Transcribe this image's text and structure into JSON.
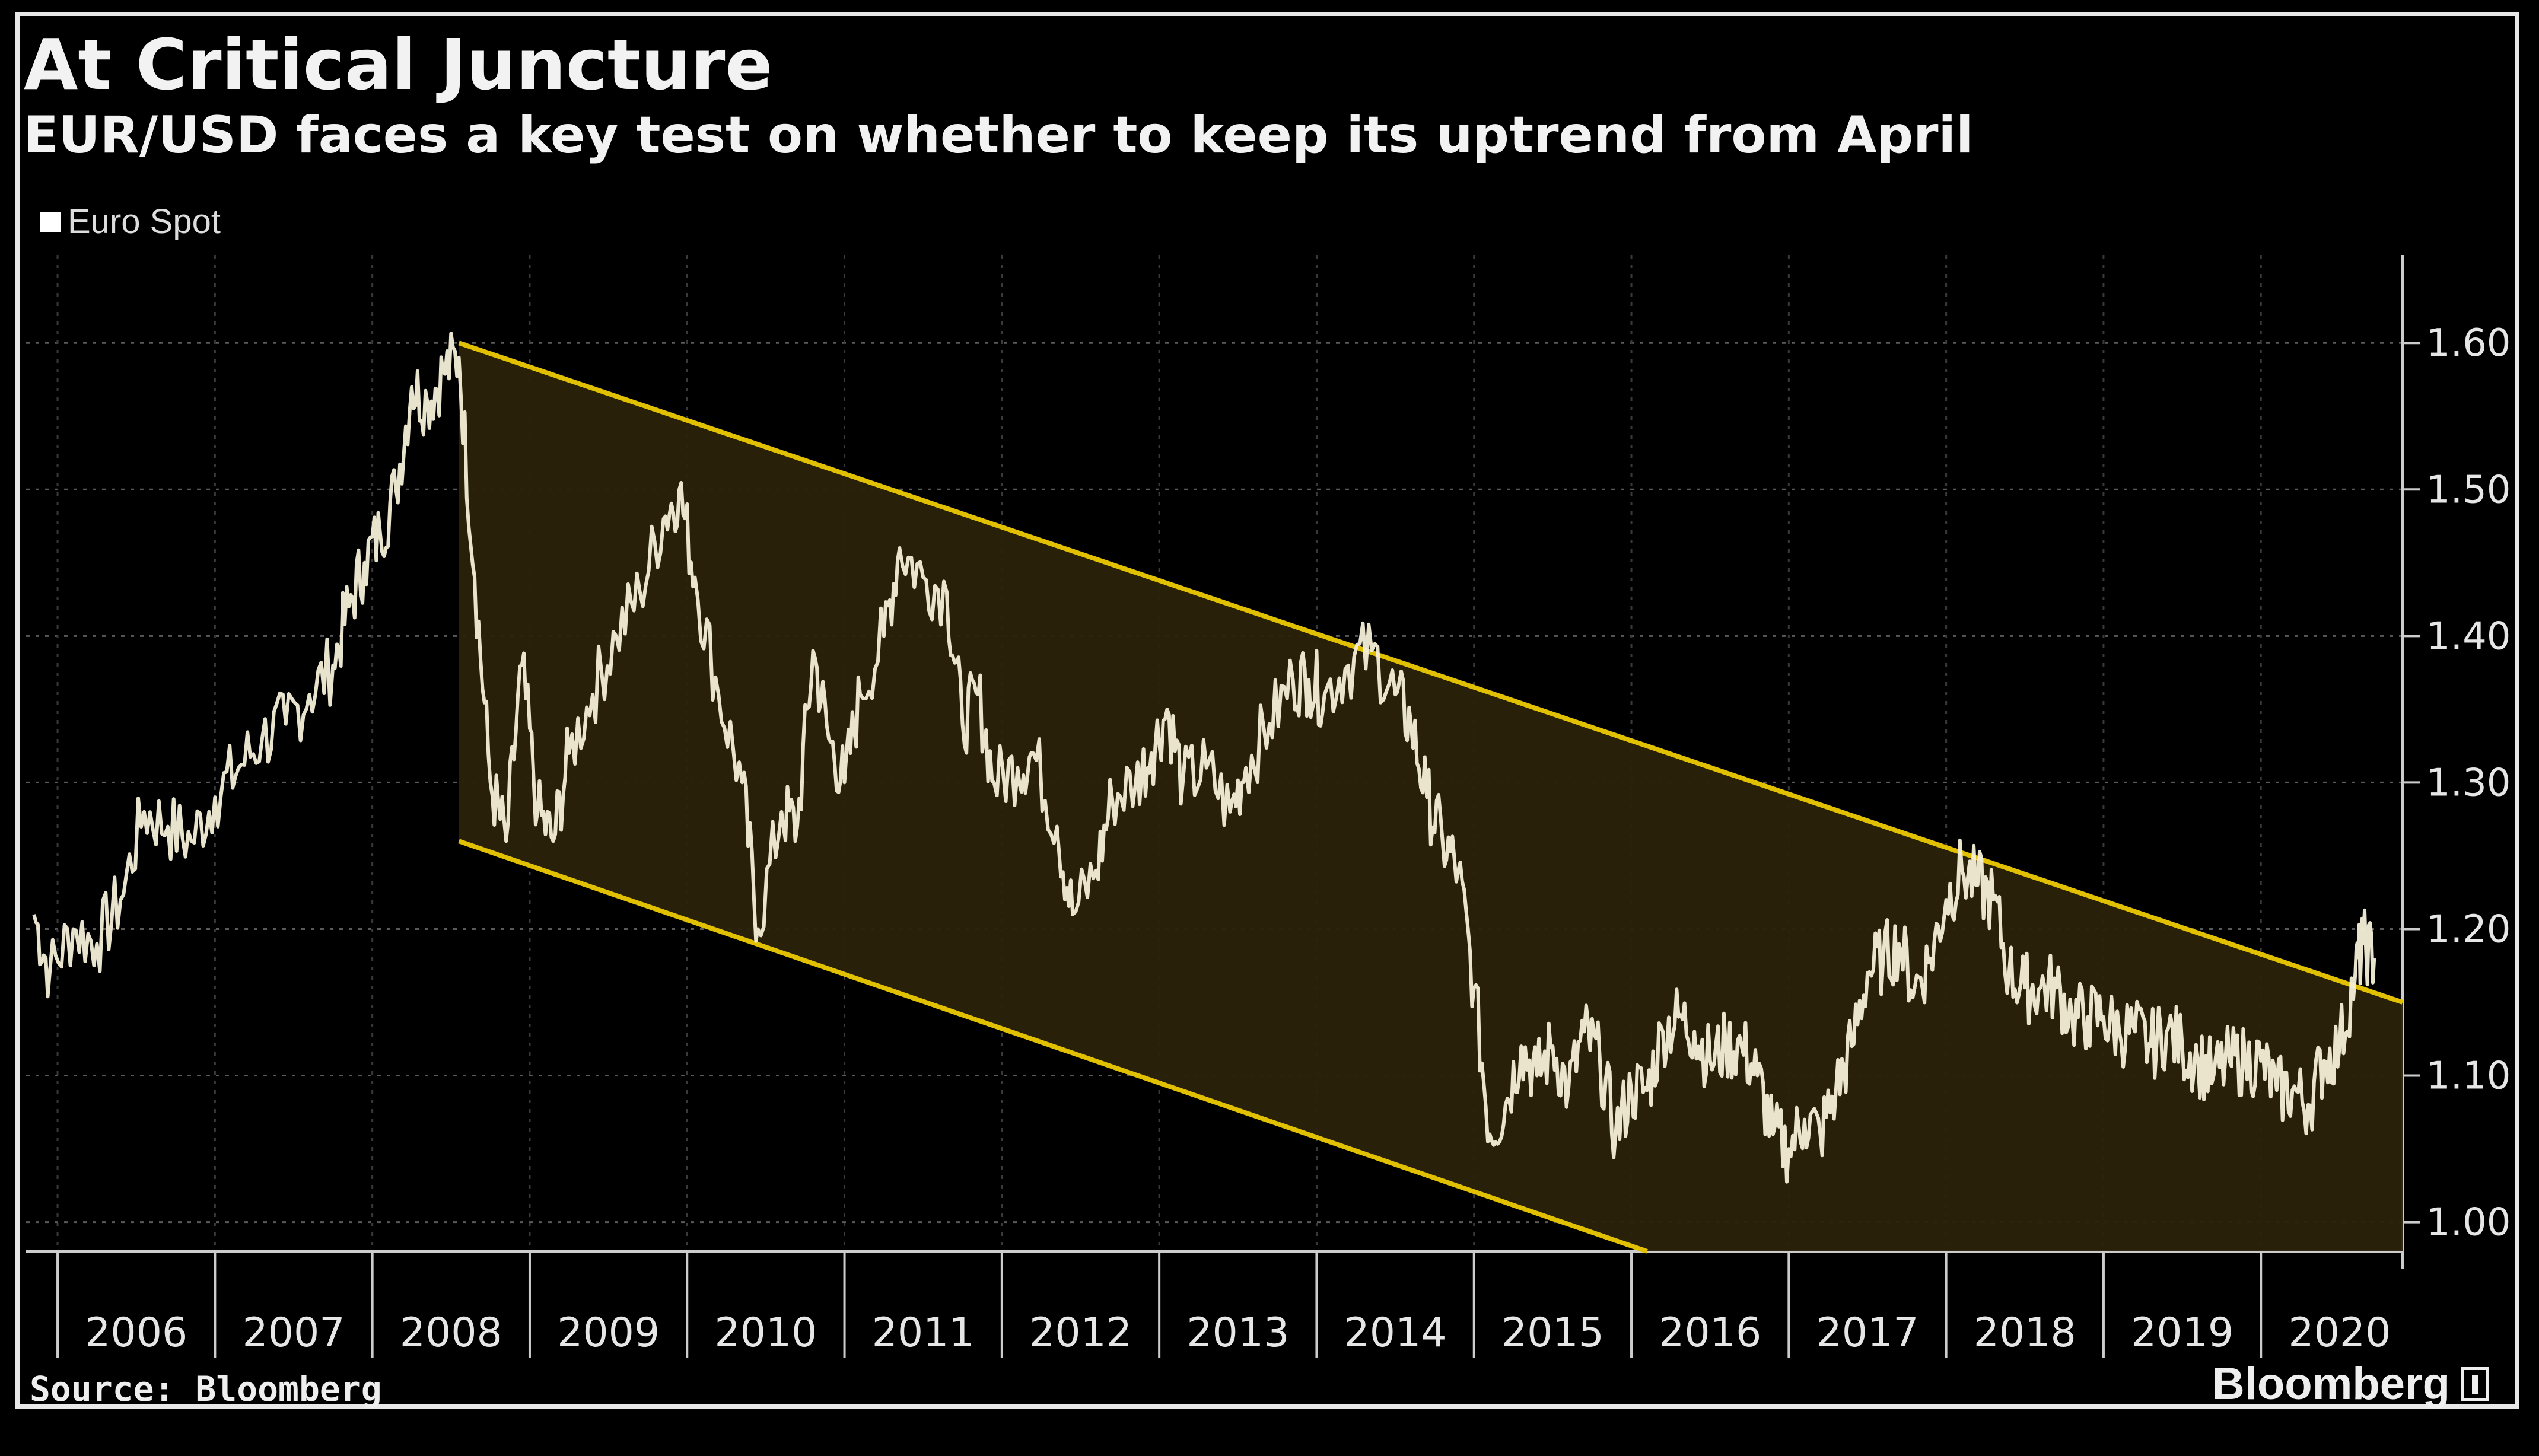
{
  "chart_data": {
    "type": "line",
    "title": "At Critical Juncture",
    "subtitle": "EUR/USD faces a key test on whether to keep its uptrend from April",
    "legend": [
      {
        "name": "Euro Spot",
        "color": "#ffffff"
      }
    ],
    "legend_position": "top-left",
    "source": "Source: Bloomberg",
    "brand": "Bloomberg",
    "xlabel": "",
    "ylabel": "",
    "xlim": [
      2005.8,
      2020.9
    ],
    "ylim": [
      0.98,
      1.66
    ],
    "y_ticks": [
      {
        "value": 1.0,
        "label": "1.00"
      },
      {
        "value": 1.1,
        "label": "1.10"
      },
      {
        "value": 1.2,
        "label": "1.20"
      },
      {
        "value": 1.3,
        "label": "1.30"
      },
      {
        "value": 1.4,
        "label": "1.40"
      },
      {
        "value": 1.5,
        "label": "1.50"
      },
      {
        "value": 1.6,
        "label": "1.60"
      }
    ],
    "x_ticks": [
      {
        "value": 2006.5,
        "label": "2006"
      },
      {
        "value": 2007.5,
        "label": "2007"
      },
      {
        "value": 2008.5,
        "label": "2008"
      },
      {
        "value": 2009.5,
        "label": "2009"
      },
      {
        "value": 2010.5,
        "label": "2010"
      },
      {
        "value": 2011.5,
        "label": "2011"
      },
      {
        "value": 2012.5,
        "label": "2012"
      },
      {
        "value": 2013.5,
        "label": "2013"
      },
      {
        "value": 2014.5,
        "label": "2014"
      },
      {
        "value": 2015.5,
        "label": "2015"
      },
      {
        "value": 2016.5,
        "label": "2016"
      },
      {
        "value": 2017.5,
        "label": "2017"
      },
      {
        "value": 2018.5,
        "label": "2018"
      },
      {
        "value": 2019.5,
        "label": "2019"
      },
      {
        "value": 2020.5,
        "label": "2020"
      }
    ],
    "channel": {
      "upper": [
        [
          2008.55,
          1.6
        ],
        [
          2020.9,
          1.15
        ]
      ],
      "lower": [
        [
          2008.55,
          1.26
        ],
        [
          2016.1,
          0.98
        ]
      ],
      "fill_color": "#2a220a",
      "line_color": "#e0c000"
    },
    "series": [
      {
        "name": "Euro Spot",
        "color": "#ffffff",
        "points": [
          [
            2005.85,
            1.21
          ],
          [
            2005.95,
            1.17
          ],
          [
            2006.1,
            1.2
          ],
          [
            2006.25,
            1.19
          ],
          [
            2006.4,
            1.22
          ],
          [
            2006.55,
            1.28
          ],
          [
            2006.7,
            1.27
          ],
          [
            2006.85,
            1.26
          ],
          [
            2007.0,
            1.29
          ],
          [
            2007.15,
            1.31
          ],
          [
            2007.3,
            1.33
          ],
          [
            2007.45,
            1.34
          ],
          [
            2007.6,
            1.36
          ],
          [
            2007.75,
            1.38
          ],
          [
            2007.85,
            1.42
          ],
          [
            2007.95,
            1.45
          ],
          [
            2008.05,
            1.47
          ],
          [
            2008.15,
            1.5
          ],
          [
            2008.25,
            1.57
          ],
          [
            2008.35,
            1.56
          ],
          [
            2008.45,
            1.58
          ],
          [
            2008.55,
            1.59
          ],
          [
            2008.65,
            1.44
          ],
          [
            2008.75,
            1.3
          ],
          [
            2008.85,
            1.26
          ],
          [
            2008.95,
            1.38
          ],
          [
            2009.05,
            1.28
          ],
          [
            2009.15,
            1.26
          ],
          [
            2009.25,
            1.32
          ],
          [
            2009.4,
            1.36
          ],
          [
            2009.55,
            1.4
          ],
          [
            2009.7,
            1.43
          ],
          [
            2009.85,
            1.48
          ],
          [
            2009.95,
            1.5
          ],
          [
            2010.05,
            1.44
          ],
          [
            2010.2,
            1.36
          ],
          [
            2010.35,
            1.3
          ],
          [
            2010.45,
            1.2
          ],
          [
            2010.6,
            1.28
          ],
          [
            2010.7,
            1.27
          ],
          [
            2010.8,
            1.39
          ],
          [
            2010.9,
            1.33
          ],
          [
            2011.0,
            1.3
          ],
          [
            2011.1,
            1.36
          ],
          [
            2011.25,
            1.4
          ],
          [
            2011.35,
            1.46
          ],
          [
            2011.5,
            1.44
          ],
          [
            2011.65,
            1.43
          ],
          [
            2011.75,
            1.34
          ],
          [
            2011.85,
            1.36
          ],
          [
            2011.95,
            1.3
          ],
          [
            2012.1,
            1.31
          ],
          [
            2012.2,
            1.32
          ],
          [
            2012.35,
            1.27
          ],
          [
            2012.45,
            1.21
          ],
          [
            2012.6,
            1.24
          ],
          [
            2012.7,
            1.29
          ],
          [
            2012.85,
            1.3
          ],
          [
            2012.95,
            1.32
          ],
          [
            2013.05,
            1.35
          ],
          [
            2013.15,
            1.3
          ],
          [
            2013.3,
            1.31
          ],
          [
            2013.45,
            1.28
          ],
          [
            2013.55,
            1.31
          ],
          [
            2013.7,
            1.34
          ],
          [
            2013.85,
            1.37
          ],
          [
            2013.95,
            1.37
          ],
          [
            2014.05,
            1.36
          ],
          [
            2014.2,
            1.38
          ],
          [
            2014.35,
            1.39
          ],
          [
            2014.5,
            1.36
          ],
          [
            2014.6,
            1.34
          ],
          [
            2014.7,
            1.29
          ],
          [
            2014.8,
            1.26
          ],
          [
            2014.9,
            1.24
          ],
          [
            2015.0,
            1.16
          ],
          [
            2015.1,
            1.06
          ],
          [
            2015.2,
            1.08
          ],
          [
            2015.3,
            1.12
          ],
          [
            2015.4,
            1.1
          ],
          [
            2015.5,
            1.12
          ],
          [
            2015.6,
            1.09
          ],
          [
            2015.7,
            1.13
          ],
          [
            2015.8,
            1.11
          ],
          [
            2015.9,
            1.06
          ],
          [
            2016.0,
            1.09
          ],
          [
            2016.1,
            1.09
          ],
          [
            2016.2,
            1.13
          ],
          [
            2016.3,
            1.14
          ],
          [
            2016.4,
            1.13
          ],
          [
            2016.5,
            1.11
          ],
          [
            2016.6,
            1.12
          ],
          [
            2016.7,
            1.12
          ],
          [
            2016.8,
            1.1
          ],
          [
            2016.9,
            1.06
          ],
          [
            2017.0,
            1.05
          ],
          [
            2017.1,
            1.07
          ],
          [
            2017.2,
            1.06
          ],
          [
            2017.3,
            1.09
          ],
          [
            2017.4,
            1.12
          ],
          [
            2017.5,
            1.17
          ],
          [
            2017.6,
            1.18
          ],
          [
            2017.7,
            1.19
          ],
          [
            2017.8,
            1.16
          ],
          [
            2017.9,
            1.18
          ],
          [
            2018.0,
            1.22
          ],
          [
            2018.1,
            1.24
          ],
          [
            2018.2,
            1.23
          ],
          [
            2018.3,
            1.22
          ],
          [
            2018.4,
            1.17
          ],
          [
            2018.5,
            1.16
          ],
          [
            2018.6,
            1.16
          ],
          [
            2018.7,
            1.16
          ],
          [
            2018.8,
            1.14
          ],
          [
            2018.9,
            1.14
          ],
          [
            2019.0,
            1.14
          ],
          [
            2019.1,
            1.13
          ],
          [
            2019.2,
            1.13
          ],
          [
            2019.3,
            1.12
          ],
          [
            2019.4,
            1.13
          ],
          [
            2019.5,
            1.12
          ],
          [
            2019.6,
            1.11
          ],
          [
            2019.7,
            1.1
          ],
          [
            2019.8,
            1.11
          ],
          [
            2019.9,
            1.11
          ],
          [
            2020.0,
            1.11
          ],
          [
            2020.1,
            1.09
          ],
          [
            2020.2,
            1.09
          ],
          [
            2020.3,
            1.08
          ],
          [
            2020.4,
            1.11
          ],
          [
            2020.5,
            1.12
          ],
          [
            2020.6,
            1.17
          ],
          [
            2020.65,
            1.19
          ],
          [
            2020.72,
            1.18
          ]
        ]
      }
    ]
  }
}
